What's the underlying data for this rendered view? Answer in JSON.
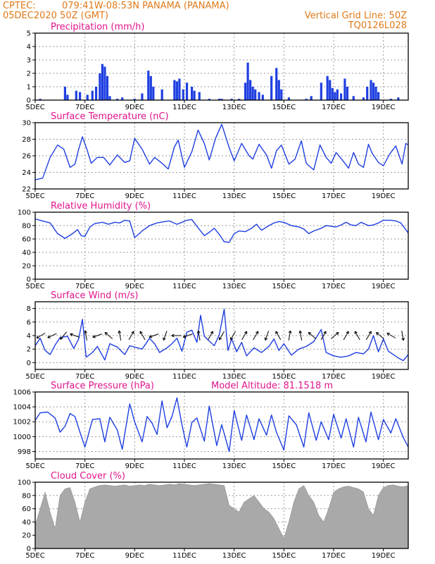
{
  "header": {
    "source": "CPTEC:",
    "location": "079:41W-08:53N  PANAMA (PANAMA)",
    "run": "05DEC2020 50Z (GMT)",
    "grid_note": "Vertical Grid Line: 50Z",
    "code": "TQ0126L028"
  },
  "colors": {
    "header": "#e07a1a",
    "title": "#e0148c",
    "series": "#1f3fe0",
    "bars": "#1f3fe0",
    "cloud": "#a9a9a9",
    "arrow": "#000000"
  },
  "chart_data": [
    {
      "type": "bar",
      "title": "Precipitation (mm/h)",
      "x_range": [
        5,
        20
      ],
      "x_ticks": [
        5,
        7,
        9,
        11,
        13,
        15,
        17,
        19
      ],
      "x_tick_labels": [
        "5DEC",
        "7DEC",
        "9DEC",
        "11DEC",
        "13DEC",
        "15DEC",
        "17DEC",
        "19DEC"
      ],
      "ylim": [
        0,
        5
      ],
      "y_ticks": [
        0,
        1,
        2,
        3,
        4,
        5
      ],
      "grid": true,
      "x": [
        5.2,
        6.2,
        6.3,
        6.65,
        6.8,
        7.1,
        7.3,
        7.45,
        7.6,
        7.7,
        7.8,
        7.9,
        8.0,
        8.3,
        8.5,
        9.0,
        9.3,
        9.55,
        9.65,
        9.75,
        10.1,
        10.6,
        10.7,
        10.8,
        10.95,
        11.1,
        11.3,
        11.4,
        11.6,
        12.0,
        12.4,
        12.5,
        12.9,
        13.2,
        13.45,
        13.55,
        13.65,
        13.75,
        13.85,
        14.0,
        14.15,
        14.5,
        14.7,
        14.8,
        14.9,
        15.2,
        15.9,
        16.1,
        16.5,
        16.75,
        16.85,
        16.95,
        17.05,
        17.15,
        17.3,
        17.45,
        17.55,
        17.8,
        18.2,
        18.35,
        18.5,
        18.6,
        18.7,
        18.8,
        19.3,
        19.6
      ],
      "values": [
        0.1,
        1.0,
        0.4,
        0.7,
        0.6,
        0.4,
        0.7,
        1.0,
        2.0,
        2.7,
        2.5,
        1.8,
        0.3,
        0.1,
        0.2,
        0.1,
        0.5,
        2.2,
        1.8,
        1.0,
        0.8,
        1.5,
        1.4,
        1.6,
        0.8,
        1.3,
        1.0,
        0.7,
        0.6,
        0.1,
        0.1,
        0.1,
        0.1,
        0.1,
        1.3,
        2.8,
        1.5,
        1.0,
        0.8,
        0.6,
        0.4,
        1.8,
        2.4,
        1.5,
        0.8,
        0.2,
        0.1,
        0.3,
        1.3,
        1.8,
        1.5,
        0.9,
        0.6,
        0.8,
        0.5,
        1.6,
        1.0,
        0.3,
        0.2,
        1.0,
        1.5,
        1.3,
        1.0,
        0.6,
        0.1,
        0.2
      ]
    },
    {
      "type": "line",
      "title": "Surface Temperature (nC)",
      "x_range": [
        5,
        20
      ],
      "x_ticks": [
        5,
        7,
        9,
        11,
        13,
        15,
        17,
        19
      ],
      "x_tick_labels": [
        "5DEC",
        "7DEC",
        "9DEC",
        "11DEC",
        "13DEC",
        "15DEC",
        "17DEC",
        "19DEC"
      ],
      "ylim": [
        22,
        30
      ],
      "y_ticks": [
        22,
        24,
        26,
        28,
        30
      ],
      "grid": true,
      "x": [
        5.0,
        5.3,
        5.6,
        5.9,
        6.15,
        6.4,
        6.6,
        6.75,
        6.9,
        7.1,
        7.25,
        7.5,
        7.75,
        8.0,
        8.3,
        8.6,
        8.8,
        9.0,
        9.3,
        9.6,
        9.8,
        10.1,
        10.35,
        10.6,
        10.75,
        11.0,
        11.3,
        11.55,
        11.8,
        12.0,
        12.25,
        12.5,
        12.8,
        13.0,
        13.3,
        13.6,
        13.75,
        14.0,
        14.3,
        14.5,
        14.7,
        14.9,
        15.2,
        15.45,
        15.7,
        15.9,
        16.2,
        16.45,
        16.7,
        16.9,
        17.1,
        17.4,
        17.6,
        17.8,
        18.0,
        18.2,
        18.4,
        18.55,
        18.8,
        19.0,
        19.25,
        19.5,
        19.75,
        19.9,
        20.0
      ],
      "values": [
        23.1,
        23.3,
        25.8,
        27.3,
        26.8,
        24.6,
        25.0,
        26.8,
        28.3,
        26.6,
        25.1,
        25.8,
        25.8,
        24.9,
        26.1,
        25.2,
        25.4,
        28.1,
        26.8,
        25.0,
        25.8,
        25.1,
        24.4,
        27.1,
        27.9,
        24.6,
        26.5,
        29.1,
        27.5,
        25.5,
        28.1,
        29.8,
        27.0,
        25.4,
        27.5,
        26.0,
        25.6,
        27.4,
        26.1,
        24.5,
        26.6,
        27.3,
        25.0,
        25.6,
        27.8,
        25.1,
        24.3,
        27.3,
        25.8,
        25.1,
        26.4,
        25.3,
        24.5,
        26.4,
        25.0,
        24.6,
        27.4,
        26.3,
        25.2,
        24.8,
        26.2,
        27.2,
        25.0,
        27.5,
        27.3
      ]
    },
    {
      "type": "line",
      "title": "Relative Humidity (%)",
      "x_range": [
        5,
        20
      ],
      "x_ticks": [
        5,
        7,
        9,
        11,
        13,
        15,
        17,
        19
      ],
      "x_tick_labels": [
        "5DEC",
        "7DEC",
        "9DEC",
        "11DEC",
        "13DEC",
        "15DEC",
        "17DEC",
        "19DEC"
      ],
      "ylim": [
        0,
        100
      ],
      "y_ticks": [
        0,
        20,
        40,
        60,
        80,
        100
      ],
      "grid": true,
      "x": [
        5.0,
        5.3,
        5.6,
        5.9,
        6.2,
        6.5,
        6.7,
        6.85,
        7.0,
        7.2,
        7.4,
        7.7,
        7.95,
        8.2,
        8.4,
        8.6,
        8.8,
        9.0,
        9.3,
        9.6,
        9.9,
        10.2,
        10.4,
        10.7,
        10.9,
        11.1,
        11.3,
        11.5,
        11.8,
        12.0,
        12.2,
        12.4,
        12.6,
        12.8,
        13.0,
        13.2,
        13.45,
        13.7,
        13.9,
        14.1,
        14.4,
        14.6,
        14.8,
        15.0,
        15.3,
        15.6,
        15.8,
        16.0,
        16.2,
        16.5,
        16.7,
        16.9,
        17.1,
        17.3,
        17.5,
        17.7,
        17.9,
        18.1,
        18.4,
        18.6,
        18.8,
        19.0,
        19.3,
        19.5,
        19.7,
        20.0
      ],
      "values": [
        90,
        87,
        84,
        68,
        61,
        68,
        74,
        65,
        64,
        78,
        83,
        85,
        82,
        85,
        84,
        88,
        87,
        62,
        72,
        80,
        84,
        86,
        87,
        82,
        85,
        88,
        89,
        79,
        65,
        70,
        76,
        67,
        56,
        55,
        68,
        72,
        71,
        76,
        82,
        73,
        80,
        84,
        86,
        85,
        80,
        78,
        75,
        68,
        72,
        76,
        80,
        79,
        78,
        81,
        85,
        81,
        80,
        85,
        80,
        81,
        84,
        88,
        88,
        87,
        84,
        69
      ]
    },
    {
      "type": "line",
      "title": "Surface Wind (m/s)",
      "x_range": [
        5,
        20
      ],
      "x_ticks": [
        5,
        7,
        9,
        11,
        13,
        15,
        17,
        19
      ],
      "x_tick_labels": [
        "5DEC",
        "7DEC",
        "9DEC",
        "11DEC",
        "13DEC",
        "15DEC",
        "17DEC",
        "19DEC"
      ],
      "ylim": [
        -1,
        9
      ],
      "y_ticks": [
        0,
        2,
        4,
        6,
        8
      ],
      "grid": true,
      "x": [
        5.0,
        5.2,
        5.4,
        5.6,
        5.8,
        6.0,
        6.3,
        6.55,
        6.75,
        6.9,
        7.05,
        7.3,
        7.5,
        7.8,
        8.0,
        8.3,
        8.6,
        8.8,
        9.0,
        9.3,
        9.6,
        9.8,
        10.0,
        10.3,
        10.5,
        10.7,
        10.9,
        11.1,
        11.3,
        11.5,
        11.65,
        11.8,
        12.0,
        12.2,
        12.4,
        12.6,
        12.75,
        12.9,
        13.1,
        13.3,
        13.5,
        13.8,
        14.1,
        14.4,
        14.6,
        14.8,
        15.0,
        15.3,
        15.6,
        15.9,
        16.2,
        16.5,
        16.7,
        17.0,
        17.3,
        17.6,
        17.9,
        18.2,
        18.4,
        18.6,
        18.8,
        19.0,
        19.2,
        19.4,
        19.6,
        19.8,
        20.0
      ],
      "values": [
        2.5,
        3.6,
        1.8,
        1.2,
        2.6,
        3.7,
        3.9,
        2.1,
        3.5,
        6.4,
        0.8,
        1.5,
        2.4,
        0.4,
        2.8,
        2.3,
        1.2,
        2.5,
        2.3,
        2.0,
        3.6,
        2.8,
        1.5,
        2.2,
        2.8,
        3.6,
        1.7,
        4.5,
        4.8,
        3.0,
        7.0,
        3.9,
        3.2,
        2.5,
        4.1,
        7.9,
        1.8,
        3.5,
        1.6,
        3.0,
        1.0,
        2.2,
        1.5,
        2.4,
        3.5,
        1.8,
        2.8,
        1.1,
        2.0,
        2.4,
        3.1,
        4.9,
        1.5,
        1.0,
        0.8,
        1.0,
        1.5,
        1.3,
        2.0,
        4.0,
        1.6,
        3.5,
        1.7,
        1.2,
        0.7,
        0.3,
        1.2
      ],
      "arrows_dir_deg": [
        210,
        205,
        230,
        160,
        100,
        200,
        140,
        100,
        60,
        120,
        200,
        250,
        180,
        200,
        100,
        60,
        240,
        240,
        60,
        60,
        250,
        120,
        80,
        100,
        140,
        60,
        40,
        60,
        120,
        60,
        140,
        150,
        280
      ]
    },
    {
      "type": "line",
      "title": "Surface Pressure (hPa)",
      "annotation": "Model Altitude: 81.1518 m",
      "x_range": [
        5,
        20
      ],
      "x_ticks": [
        5,
        7,
        9,
        11,
        13,
        15,
        17,
        19
      ],
      "x_tick_labels": [
        "5DEC",
        "7DEC",
        "9DEC",
        "11DEC",
        "13DEC",
        "15DEC",
        "17DEC",
        "19DEC"
      ],
      "ylim": [
        997,
        1006
      ],
      "y_ticks": [
        998,
        1000,
        1002,
        1004,
        1006
      ],
      "grid": true,
      "x": [
        5.0,
        5.2,
        5.5,
        5.8,
        6.0,
        6.2,
        6.4,
        6.6,
        6.8,
        7.0,
        7.3,
        7.6,
        7.8,
        8.0,
        8.3,
        8.5,
        8.8,
        9.0,
        9.3,
        9.5,
        9.7,
        9.9,
        10.1,
        10.3,
        10.5,
        10.7,
        10.9,
        11.1,
        11.3,
        11.5,
        11.8,
        12.0,
        12.3,
        12.5,
        12.8,
        13.0,
        13.3,
        13.5,
        13.8,
        14.0,
        14.3,
        14.5,
        14.7,
        15.0,
        15.2,
        15.5,
        15.8,
        16.0,
        16.3,
        16.5,
        16.8,
        17.0,
        17.3,
        17.5,
        17.8,
        18.0,
        18.3,
        18.5,
        18.8,
        19.0,
        19.3,
        19.5,
        19.8,
        20.0
      ],
      "values": [
        1002.2,
        1003.2,
        1003.3,
        1002.5,
        1000.6,
        1001.4,
        1003.1,
        1002.7,
        1000.6,
        998.6,
        1002.3,
        1002.4,
        999.3,
        1002.6,
        1000.9,
        998.3,
        1004.4,
        1002.0,
        999.3,
        1002.7,
        1001.8,
        1000.3,
        1004.8,
        1001.2,
        1002.7,
        1005.2,
        1001.6,
        998.6,
        1001.9,
        1002.5,
        999.4,
        1004.1,
        998.8,
        1001.6,
        998.0,
        1003.5,
        999.5,
        1002.9,
        999.6,
        1002.4,
        1000.2,
        1002.9,
        1000.6,
        998.2,
        1002.8,
        1001.6,
        998.6,
        1003.2,
        999.5,
        1002.0,
        999.6,
        1003.0,
        999.8,
        1002.4,
        998.6,
        1002.6,
        999.3,
        1003.3,
        999.6,
        1002.3,
        1000.5,
        1002.4,
        999.9,
        998.6
      ]
    },
    {
      "type": "area",
      "title": "Cloud Cover (%)",
      "x_range": [
        5,
        20
      ],
      "x_ticks": [
        5,
        7,
        9,
        11,
        13,
        15,
        17,
        19
      ],
      "x_tick_labels": [
        "5DEC",
        "7DEC",
        "9DEC",
        "11DEC",
        "13DEC",
        "15DEC",
        "17DEC",
        "19DEC"
      ],
      "ylim": [
        0,
        100
      ],
      "y_ticks": [
        0,
        20,
        40,
        60,
        80,
        100
      ],
      "grid": true,
      "x": [
        5.0,
        5.2,
        5.4,
        5.6,
        5.8,
        6.0,
        6.2,
        6.4,
        6.6,
        6.8,
        7.0,
        7.2,
        7.4,
        7.6,
        7.8,
        8.0,
        8.2,
        8.4,
        8.6,
        8.8,
        9.0,
        9.2,
        9.4,
        9.6,
        9.8,
        10.0,
        10.2,
        10.4,
        10.6,
        10.8,
        11.0,
        11.2,
        11.4,
        11.6,
        11.8,
        12.0,
        12.2,
        12.4,
        12.6,
        12.8,
        13.0,
        13.2,
        13.4,
        13.6,
        13.8,
        14.0,
        14.2,
        14.4,
        14.6,
        14.8,
        15.0,
        15.2,
        15.4,
        15.6,
        15.8,
        16.0,
        16.2,
        16.4,
        16.6,
        16.8,
        17.0,
        17.2,
        17.4,
        17.6,
        17.8,
        18.0,
        18.2,
        18.4,
        18.6,
        18.8,
        19.0,
        19.2,
        19.4,
        19.6,
        19.8,
        20.0
      ],
      "values": [
        35,
        60,
        85,
        55,
        30,
        80,
        90,
        92,
        70,
        40,
        70,
        90,
        93,
        95,
        96,
        95,
        94,
        95,
        96,
        94,
        95,
        96,
        95,
        97,
        96,
        95,
        96,
        97,
        96,
        98,
        97,
        96,
        95,
        96,
        97,
        98,
        97,
        96,
        95,
        65,
        60,
        55,
        70,
        75,
        80,
        70,
        60,
        55,
        45,
        30,
        15,
        40,
        70,
        90,
        95,
        80,
        70,
        50,
        40,
        60,
        85,
        90,
        93,
        94,
        92,
        90,
        85,
        60,
        50,
        80,
        92,
        95,
        96,
        94,
        93,
        95
      ]
    }
  ]
}
